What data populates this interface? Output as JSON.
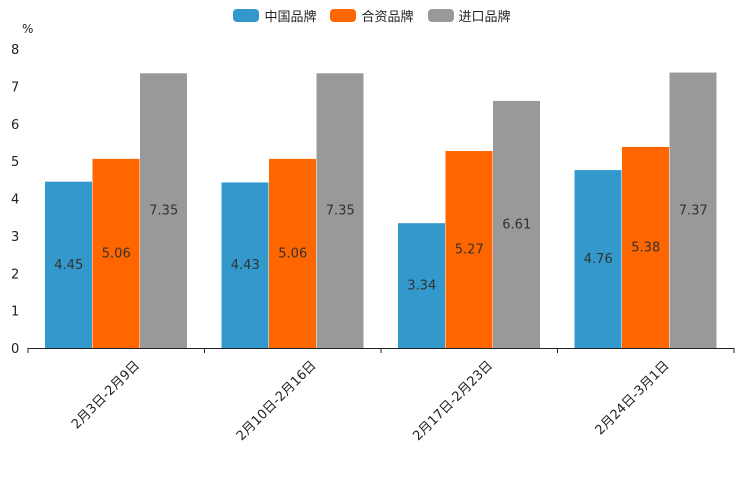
{
  "chart_data": {
    "type": "bar",
    "title": "",
    "xlabel": "",
    "ylabel": "%",
    "ylim": [
      0,
      8
    ],
    "yticks": [
      0,
      1,
      2,
      3,
      4,
      5,
      6,
      7,
      8
    ],
    "grid": false,
    "legend_position": "top-center",
    "categories": [
      "2月3日-2月9日",
      "2月10日-2月16日",
      "2月17日-2月23日",
      "2月24日-3月1日"
    ],
    "series": [
      {
        "name": "中国品牌",
        "color": "#3399CC",
        "values": [
          4.45,
          4.43,
          3.34,
          4.76
        ]
      },
      {
        "name": "合资品牌",
        "color": "#FF6600",
        "values": [
          5.06,
          5.06,
          5.27,
          5.38
        ]
      },
      {
        "name": "进口品牌",
        "color": "#999999",
        "values": [
          7.35,
          7.35,
          6.61,
          7.37
        ]
      }
    ]
  }
}
